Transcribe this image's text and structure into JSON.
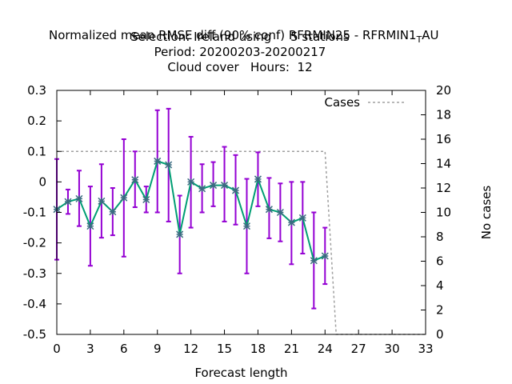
{
  "chart_data": {
    "type": "line",
    "title_lines": [
      "Normalized mean RMSE diff (90% conf) RFRMIN25 - RFRMIN1_TAU",
      "Selection: Ireland using     5 stations",
      "Period: 20200203-20200217",
      "Cloud cover   Hours:  12"
    ],
    "xlabel": "Forecast length",
    "ylabel": "",
    "y2label": "No cases",
    "xlim": [
      0,
      33
    ],
    "ylim": [
      -0.5,
      0.3
    ],
    "y2lim": [
      0,
      20
    ],
    "xticks": [
      0,
      3,
      6,
      9,
      12,
      15,
      18,
      21,
      24,
      27,
      30,
      33
    ],
    "yticks": [
      -0.5,
      -0.4,
      -0.3,
      -0.2,
      -0.1,
      0,
      0.1,
      0.2,
      0.3
    ],
    "ytick_labels": [
      "-0.5",
      "-0.4",
      "-0.3",
      "-0.2",
      "-0.1",
      "0",
      "0.1",
      "0.2",
      "0.3"
    ],
    "y2ticks": [
      0,
      2,
      4,
      6,
      8,
      10,
      12,
      14,
      16,
      18,
      20
    ],
    "legend": {
      "placement": "top-right",
      "entries": [
        "Cases"
      ]
    },
    "colors": {
      "line": "#009e73",
      "errorbar": "#9400d3",
      "cases": "#a0a0a0"
    },
    "series": [
      {
        "name": "",
        "x": [
          0,
          1,
          2,
          3,
          4,
          5,
          6,
          7,
          8,
          9,
          10,
          11,
          12,
          13,
          14,
          15,
          16,
          17,
          18,
          19,
          20,
          21,
          22,
          23,
          24
        ],
        "values": [
          -0.09,
          -0.065,
          -0.055,
          -0.145,
          -0.063,
          -0.098,
          -0.052,
          0.007,
          -0.058,
          0.068,
          0.056,
          -0.172,
          0.0,
          -0.022,
          -0.011,
          -0.011,
          -0.028,
          -0.145,
          0.009,
          -0.09,
          -0.1,
          -0.133,
          -0.118,
          -0.258,
          -0.243
        ],
        "err_low": [
          -0.255,
          -0.105,
          -0.145,
          -0.275,
          -0.183,
          -0.175,
          -0.245,
          -0.083,
          -0.1,
          -0.1,
          -0.13,
          -0.3,
          -0.15,
          -0.1,
          -0.08,
          -0.13,
          -0.14,
          -0.3,
          -0.08,
          -0.185,
          -0.195,
          -0.27,
          -0.235,
          -0.415,
          -0.335
        ],
        "err_high": [
          0.075,
          -0.025,
          0.037,
          -0.015,
          0.058,
          -0.02,
          0.14,
          0.1,
          -0.015,
          0.235,
          0.24,
          -0.045,
          0.148,
          0.058,
          0.065,
          0.115,
          0.088,
          0.01,
          0.097,
          0.013,
          -0.005,
          0.0,
          0.0,
          -0.1,
          -0.15
        ]
      },
      {
        "name": "Cases",
        "axis": "y2",
        "x": [
          0,
          24,
          25,
          33
        ],
        "values": [
          15,
          15,
          0,
          0
        ]
      }
    ]
  }
}
